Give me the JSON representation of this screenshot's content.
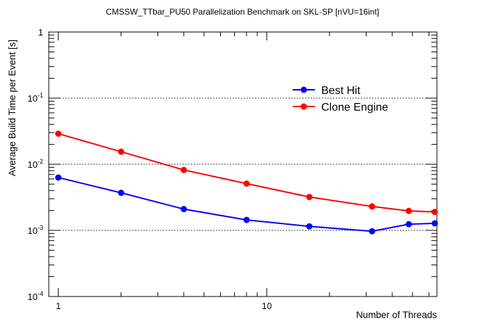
{
  "chart_data": {
    "type": "line",
    "title": "CMSSW_TTbar_PU50 Parallelization Benchmark on SKL-SP [nVU=16int]",
    "xlabel": "Number of Threads",
    "ylabel": "Average Build Time per Event [s]",
    "xscale": "log",
    "yscale": "log",
    "xlim": [
      0.9,
      65.5
    ],
    "ylim": [
      0.0001,
      1
    ],
    "x_tick_labels": [
      "1",
      "10"
    ],
    "y_tick_labels": [
      {
        "base": "10",
        "exp": "-4"
      },
      {
        "base": "10",
        "exp": "-3"
      },
      {
        "base": "10",
        "exp": "-2"
      },
      {
        "base": "10",
        "exp": "-1"
      },
      {
        "base": "1",
        "exp": ""
      }
    ],
    "grid": "horizontal dotted at decades",
    "legend_position": "upper-right",
    "x": [
      1,
      2,
      4,
      8,
      16,
      32,
      48,
      64
    ],
    "series": [
      {
        "name": "Best Hit",
        "color": "#0000ff",
        "values": [
          0.0063,
          0.0037,
          0.0021,
          0.00144,
          0.00115,
          0.00097,
          0.00124,
          0.00128
        ]
      },
      {
        "name": "Clone Engine",
        "color": "#ff0000",
        "values": [
          0.029,
          0.0155,
          0.0082,
          0.0051,
          0.0032,
          0.0023,
          0.00197,
          0.0019
        ]
      }
    ]
  }
}
